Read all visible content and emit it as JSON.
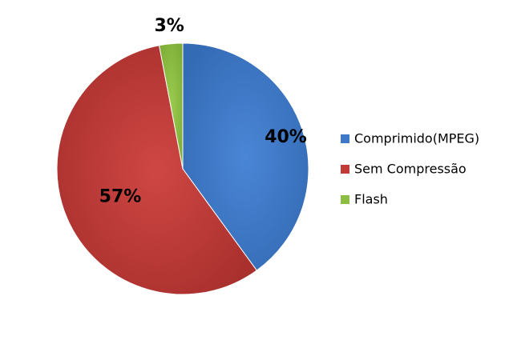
{
  "chart_data": {
    "type": "pie",
    "categories": [
      "Comprimido(MPEG)",
      "Sem Compressão",
      "Flash"
    ],
    "values": [
      40,
      57,
      3
    ],
    "data_labels": [
      "40%",
      "57%",
      "3%"
    ],
    "colors": [
      "#3f78c8",
      "#c03a37",
      "#8dbe43"
    ],
    "legend_placement": "right",
    "start_angle_deg": 0,
    "direction": "clockwise"
  }
}
